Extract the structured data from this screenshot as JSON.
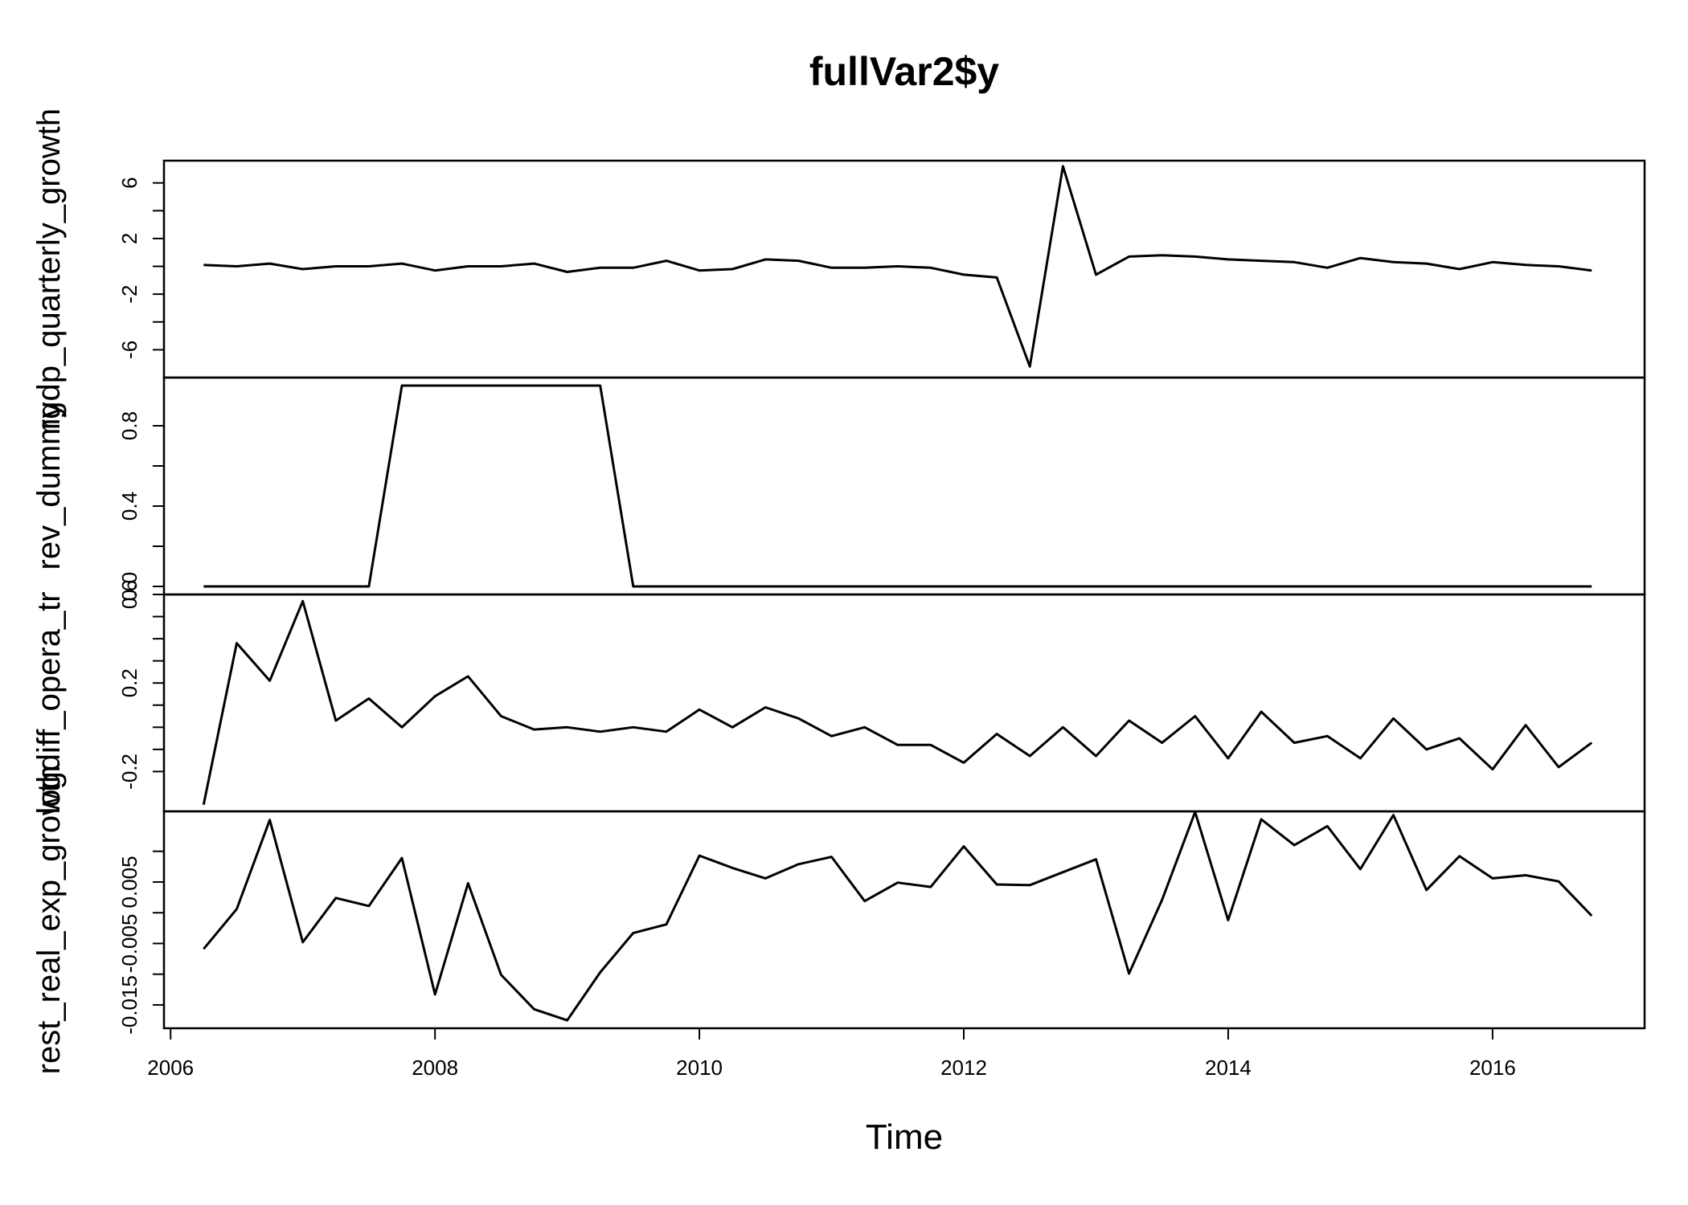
{
  "chart_data": {
    "type": "line",
    "title": "fullVar2$y",
    "xlabel": "Time",
    "xlim": [
      2005.95,
      2017.15
    ],
    "x_ticks": [
      2006,
      2008,
      2010,
      2012,
      2014,
      2016
    ],
    "x_tick_labels": [
      "2006",
      "2008",
      "2010",
      "2012",
      "2014",
      "2016"
    ],
    "x": [
      2006.25,
      2006.5,
      2006.75,
      2007.0,
      2007.25,
      2007.5,
      2007.75,
      2008.0,
      2008.25,
      2008.5,
      2008.75,
      2009.0,
      2009.25,
      2009.5,
      2009.75,
      2010.0,
      2010.25,
      2010.5,
      2010.75,
      2011.0,
      2011.25,
      2011.5,
      2011.75,
      2012.0,
      2012.25,
      2012.5,
      2012.75,
      2013.0,
      2013.25,
      2013.5,
      2013.75,
      2014.0,
      2014.25,
      2014.5,
      2014.75,
      2015.0,
      2015.25,
      2015.5,
      2015.75,
      2016.0,
      2016.25,
      2016.5,
      2016.75
    ],
    "series": [
      {
        "name": "rgdp_quarterly_growth",
        "ylim": [
          -8.0,
          7.6
        ],
        "y_ticks": [
          -6,
          -4,
          -2,
          0,
          2,
          4,
          6
        ],
        "y_tick_labels": [
          "-6",
          "",
          "-2",
          "",
          "2",
          "",
          "6"
        ],
        "values": [
          0.1,
          0.0,
          0.2,
          -0.2,
          0.0,
          0.0,
          0.2,
          -0.3,
          0.0,
          0.0,
          0.2,
          -0.4,
          -0.1,
          -0.1,
          0.4,
          -0.3,
          -0.2,
          0.5,
          0.4,
          -0.1,
          -0.1,
          0.0,
          -0.1,
          -0.6,
          -0.8,
          -7.2,
          7.2,
          -0.6,
          0.7,
          0.8,
          0.7,
          0.5,
          0.4,
          0.3,
          -0.1,
          0.6,
          0.3,
          0.2,
          -0.2,
          0.3,
          0.1,
          0.0,
          -0.3
        ]
      },
      {
        "name": "rev_dummy",
        "ylim": [
          -0.04,
          1.04
        ],
        "y_ticks": [
          0.0,
          0.2,
          0.4,
          0.6,
          0.8
        ],
        "y_tick_labels": [
          "0.0",
          "",
          "0.4",
          "",
          "0.8"
        ],
        "values": [
          0,
          0,
          0,
          0,
          0,
          0,
          1,
          1,
          1,
          1,
          1,
          1,
          1,
          0,
          0,
          0,
          0,
          0,
          0,
          0,
          0,
          0,
          0,
          0,
          0,
          0,
          0,
          0,
          0,
          0,
          0,
          0,
          0,
          0,
          0,
          0,
          0,
          0,
          0,
          0,
          0,
          0,
          0
        ]
      },
      {
        "name": "logdiff_opera_tr",
        "ylim": [
          -0.38,
          0.6
        ],
        "y_ticks": [
          -0.2,
          -0.1,
          0.0,
          0.1,
          0.2,
          0.3,
          0.4,
          0.5,
          0.6
        ],
        "y_tick_labels": [
          "-0.2",
          "",
          "",
          "",
          "0.2",
          "",
          "",
          "",
          "0.6"
        ],
        "values": [
          -0.35,
          0.38,
          0.21,
          0.57,
          0.03,
          0.13,
          0.0,
          0.14,
          0.23,
          0.05,
          -0.01,
          0.0,
          -0.02,
          0.0,
          -0.02,
          0.08,
          0.0,
          0.09,
          0.04,
          -0.04,
          0.0,
          -0.08,
          -0.08,
          -0.16,
          -0.03,
          -0.13,
          0.0,
          -0.13,
          0.03,
          -0.07,
          0.05,
          -0.14,
          0.07,
          -0.07,
          -0.04,
          -0.14,
          0.04,
          -0.1,
          -0.05,
          -0.19,
          0.01,
          -0.18,
          -0.07
        ]
      },
      {
        "name": "rest_real_exp_growth",
        "ylim": [
          -0.0188,
          0.0165
        ],
        "y_ticks": [
          -0.015,
          -0.01,
          -0.005,
          0.0,
          0.005,
          0.01
        ],
        "y_tick_labels": [
          "-0.015",
          "",
          "-0.005",
          "",
          "0.005",
          ""
        ],
        "values": [
          -0.0059,
          0.0006,
          0.0151,
          -0.0048,
          0.0024,
          0.0011,
          0.0089,
          -0.0133,
          0.0048,
          -0.0101,
          -0.0157,
          -0.0175,
          -0.0097,
          -0.0033,
          -0.0019,
          0.0093,
          0.0073,
          0.0056,
          0.0079,
          0.0091,
          0.0019,
          0.0049,
          0.0042,
          0.0108,
          0.0046,
          0.0045,
          0.0066,
          0.0087,
          -0.0099,
          0.0021,
          0.0164,
          -0.0012,
          0.0152,
          0.011,
          0.0141,
          0.0071,
          0.0159,
          0.0037,
          0.0092,
          0.0056,
          0.0061,
          0.0051,
          -0.0005
        ]
      }
    ],
    "grid": false,
    "legend": "none"
  }
}
